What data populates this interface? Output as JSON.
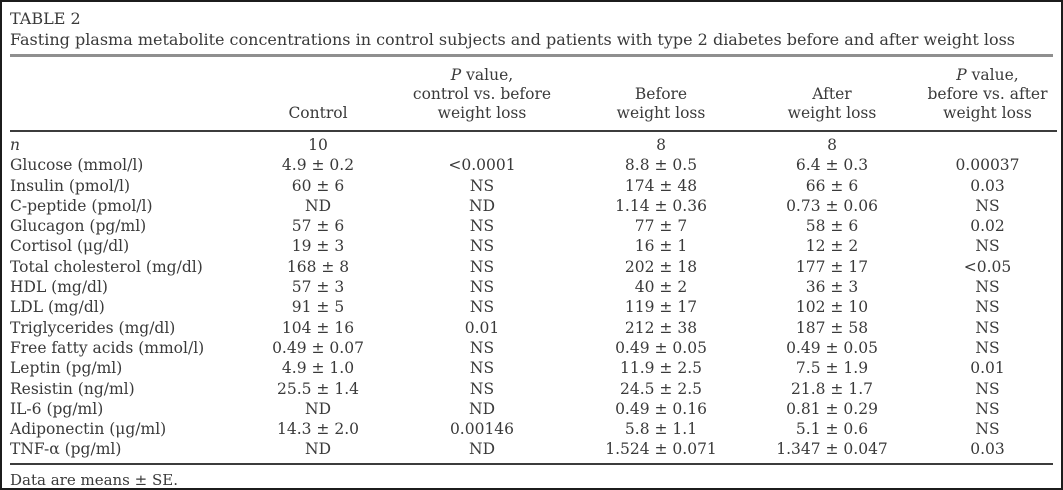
{
  "page": {
    "title_label": "TABLE 2",
    "caption": "Fasting plasma metabolite concentrations in control subjects and patients with type 2 diabetes before and after weight loss",
    "footnote": "Data are means ± SE."
  },
  "colors": {
    "text": "#3a3a3a",
    "rule_light": "#8f8f8f",
    "rule_dark": "#3c3c3c",
    "frame_border": "#1c1c1c",
    "background": "#ffffff"
  },
  "table": {
    "header": [
      {
        "id": "parameter",
        "lines": []
      },
      {
        "id": "control",
        "lines": [
          {
            "text": "Control"
          }
        ]
      },
      {
        "id": "p-control-vs-before",
        "lines": [
          {
            "italic": "P",
            "text": " value,"
          },
          {
            "text": "control vs. before"
          },
          {
            "text": "weight loss"
          }
        ]
      },
      {
        "id": "before-weight-loss",
        "lines": [
          {
            "text": "Before"
          },
          {
            "text": "weight loss"
          }
        ]
      },
      {
        "id": "after-weight-loss",
        "lines": [
          {
            "text": "After"
          },
          {
            "text": "weight loss"
          }
        ]
      },
      {
        "id": "p-before-vs-after",
        "lines": [
          {
            "italic": "P",
            "text": " value,"
          },
          {
            "text": "before vs. after"
          },
          {
            "text": "weight loss"
          }
        ]
      }
    ],
    "rows": [
      {
        "label": {
          "italic": "n"
        },
        "cells": [
          "10",
          "",
          "8",
          "8",
          ""
        ]
      },
      {
        "label": {
          "text": "Glucose (mmol/l)"
        },
        "cells": [
          "4.9 ± 0.2",
          "<0.0001",
          "8.8 ± 0.5",
          "6.4 ± 0.3",
          "0.00037"
        ]
      },
      {
        "label": {
          "text": "Insulin (pmol/l)"
        },
        "cells": [
          "60 ± 6",
          "NS",
          "174 ± 48",
          "66 ± 6",
          "0.03"
        ]
      },
      {
        "label": {
          "text": "C-peptide (pmol/l)"
        },
        "cells": [
          "ND",
          "ND",
          "1.14 ± 0.36",
          "0.73 ± 0.06",
          "NS"
        ]
      },
      {
        "label": {
          "text": "Glucagon (pg/ml)"
        },
        "cells": [
          "57 ± 6",
          "NS",
          "77 ± 7",
          "58 ± 6",
          "0.02"
        ]
      },
      {
        "label": {
          "text": "Cortisol (μg/dl)"
        },
        "cells": [
          "19 ± 3",
          "NS",
          "16 ± 1",
          "12 ± 2",
          "NS"
        ]
      },
      {
        "label": {
          "text": "Total cholesterol (mg/dl)"
        },
        "cells": [
          "168 ± 8",
          "NS",
          "202 ± 18",
          "177 ± 17",
          "<0.05"
        ]
      },
      {
        "label": {
          "text": "HDL (mg/dl)"
        },
        "cells": [
          "57 ± 3",
          "NS",
          "40 ± 2",
          "36 ± 3",
          "NS"
        ]
      },
      {
        "label": {
          "text": "LDL (mg/dl)"
        },
        "cells": [
          "91 ± 5",
          "NS",
          "119 ± 17",
          "102 ± 10",
          "NS"
        ]
      },
      {
        "label": {
          "text": "Triglycerides (mg/dl)"
        },
        "cells": [
          "104 ± 16",
          "0.01",
          "212 ± 38",
          "187 ± 58",
          "NS"
        ]
      },
      {
        "label": {
          "text": "Free fatty acids (mmol/l)"
        },
        "cells": [
          "0.49 ± 0.07",
          "NS",
          "0.49 ± 0.05",
          "0.49 ± 0.05",
          "NS"
        ]
      },
      {
        "label": {
          "text": "Leptin (pg/ml)"
        },
        "cells": [
          "4.9 ± 1.0",
          "NS",
          "11.9 ± 2.5",
          "7.5 ± 1.9",
          "0.01"
        ]
      },
      {
        "label": {
          "text": "Resistin (ng/ml)"
        },
        "cells": [
          "25.5 ± 1.4",
          "NS",
          "24.5 ± 2.5",
          "21.8 ± 1.7",
          "NS"
        ]
      },
      {
        "label": {
          "text": "IL-6 (pg/ml)"
        },
        "cells": [
          "ND",
          "ND",
          "0.49 ± 0.16",
          "0.81 ± 0.29",
          "NS"
        ]
      },
      {
        "label": {
          "text": "Adiponectin (μg/ml)"
        },
        "cells": [
          "14.3 ± 2.0",
          "0.00146",
          "5.8 ± 1.1",
          "5.1 ± 0.6",
          "NS"
        ]
      },
      {
        "label": {
          "text": "TNF-α (pg/ml)"
        },
        "cells": [
          "ND",
          "ND",
          "1.524 ± 0.071",
          "1.347 ± 0.047",
          "0.03"
        ]
      }
    ]
  }
}
